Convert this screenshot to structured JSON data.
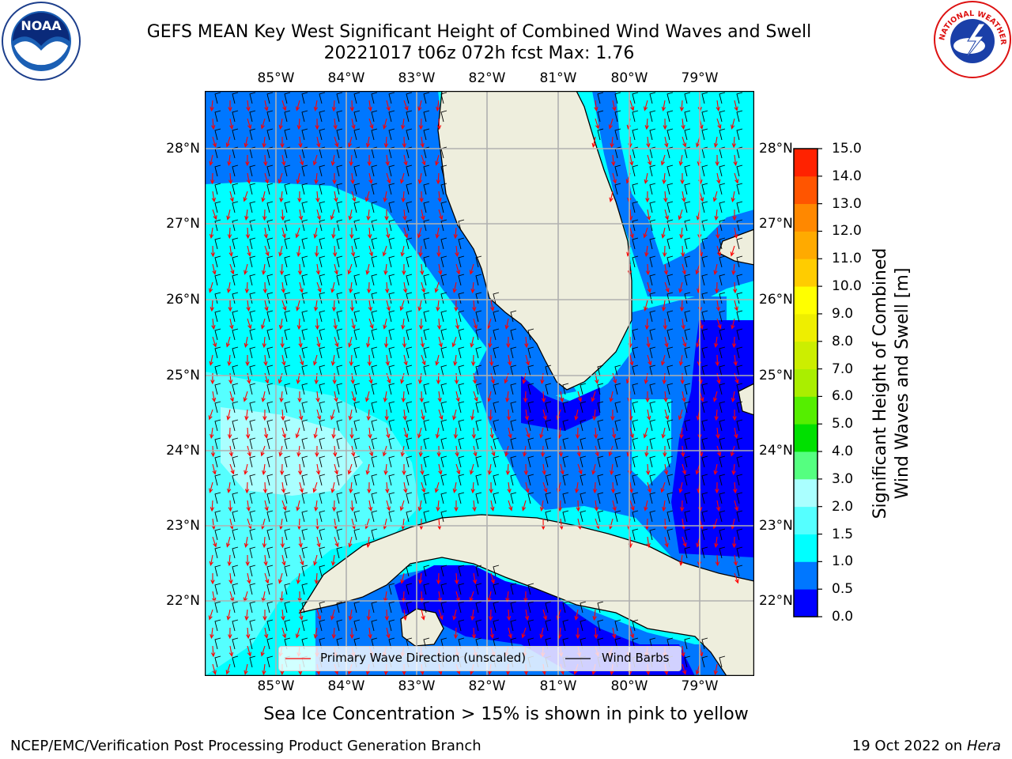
{
  "title_line1": "GEFS MEAN Key West Significant Height of Combined Wind Waves and Swell",
  "title_line2": "20221017 t06z 072h fcst   Max: 1.76",
  "lon_labels": [
    "85°W",
    "84°W",
    "83°W",
    "82°W",
    "81°W",
    "80°W",
    "79°W"
  ],
  "lat_labels": [
    "28°N",
    "27°N",
    "26°N",
    "25°N",
    "24°N",
    "23°N",
    "22°N"
  ],
  "colorbar": {
    "label_line1": "Significant Height of Combined",
    "label_line2": "Wind Waves and Swell [m]",
    "ticks": [
      "0.0",
      "0.5",
      "1.0",
      "1.5",
      "2.0",
      "3.0",
      "4.0",
      "5.0",
      "6.0",
      "7.0",
      "8.0",
      "9.0",
      "10.0",
      "11.0",
      "12.0",
      "13.0",
      "14.0",
      "15.0"
    ],
    "colors": [
      "#0000ff",
      "#0077ff",
      "#00ffff",
      "#55ffff",
      "#aaffff",
      "#55ff80",
      "#00e000",
      "#55ee00",
      "#aaee00",
      "#ccee00",
      "#eeee00",
      "#ffff00",
      "#ffcc00",
      "#ffaa00",
      "#ff8800",
      "#ff5500",
      "#ff2200"
    ]
  },
  "legend": {
    "wave_label": "Primary Wave Direction (unscaled)",
    "barb_label": "Wind Barbs"
  },
  "colors": {
    "land": "#eeeedd",
    "ocean_deep_blue": "#0000ff",
    "ocean_blue": "#0077ff",
    "ocean_cyan": "#00ffff",
    "ocean_light_cyan": "#55ffff",
    "ocean_pale_cyan": "#aaffff",
    "wave_arrow": "#ff0000",
    "grid": "#b0b0b0"
  },
  "logos": {
    "noaa_text": "NOAA",
    "nws_text": "NATIONAL WEATHER SERVICE"
  },
  "sea_ice_note": "Sea Ice Concentration > 15% is shown in pink to yellow",
  "footer_left": "NCEP/EMC/Verification Post Processing Product Generation Branch",
  "footer_date": "19 Oct 2022 on ",
  "footer_host": "Hera"
}
